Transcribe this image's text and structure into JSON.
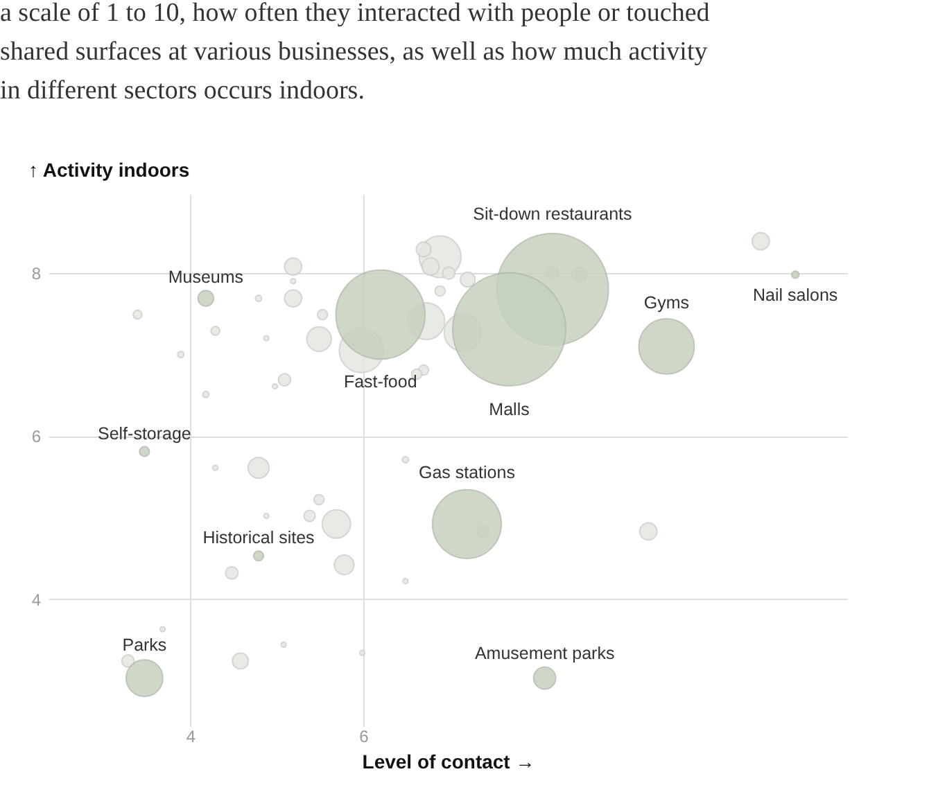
{
  "chart_data": {
    "type": "bubble",
    "subtitle": "a scale of 1 to 10, how often they interacted with people or touched shared surfaces at various businesses, as well as how much activity in different sectors occurs indoors.",
    "xlabel": "Level of contact →",
    "ylabel": "↑ Activity indoors",
    "xlim": [
      2.36,
      11.6
    ],
    "ylim": [
      2.44,
      8.97
    ],
    "xticks": [
      4,
      6
    ],
    "yticks": [
      4,
      6,
      8
    ],
    "grid": true,
    "series": [
      {
        "color": "#e4e7e1",
        "x": [
          5.19,
          5.19,
          5.19,
          4.79,
          3.39,
          4.29,
          4.88,
          3.89,
          5.09,
          4.98,
          4.18,
          5.53,
          5.49,
          5.98,
          6.7,
          6.89,
          6.7,
          6.78,
          6.99,
          7.21,
          6.89,
          6.73,
          7.15,
          8.5,
          8.19,
          6.62,
          10.6,
          3.68,
          3.28,
          4.29,
          4.79,
          5.49,
          5.38,
          4.88,
          5.69,
          5.78,
          4.48,
          6.49,
          6.49,
          5.08,
          4.58,
          5.99,
          7.39,
          9.3
        ],
        "values": [
          8.08,
          7.9,
          7.69,
          7.69,
          7.49,
          7.29,
          7.2,
          7.0,
          6.69,
          6.61,
          6.51,
          7.49,
          7.19,
          7.05,
          6.81,
          8.2,
          8.29,
          8.08,
          8.0,
          7.92,
          7.78,
          7.41,
          7.27,
          7.98,
          8.0,
          6.76,
          8.39,
          3.63,
          3.24,
          5.61,
          5.61,
          5.22,
          5.02,
          5.02,
          4.92,
          4.42,
          4.32,
          5.71,
          4.22,
          3.44,
          3.24,
          3.34,
          4.83,
          4.83
        ],
        "sizes": [
          0.023,
          0.002,
          0.023,
          0.003,
          0.006,
          0.006,
          0.002,
          0.003,
          0.012,
          0.002,
          0.003,
          0.008,
          0.047,
          0.153,
          0.008,
          0.137,
          0.017,
          0.023,
          0.012,
          0.017,
          0.008,
          0.106,
          0.106,
          0.017,
          0.012,
          0.008,
          0.023,
          0.002,
          0.012,
          0.002,
          0.034,
          0.008,
          0.01,
          0.002,
          0.063,
          0.03,
          0.012,
          0.003,
          0.002,
          0.002,
          0.02,
          0.002,
          0.01,
          0.023
        ]
      },
      {
        "color": "#c6d1bf",
        "x": [
          8.19,
          7.69,
          6.2,
          9.51,
          11.0,
          4.18,
          3.47,
          4.79,
          3.47,
          7.2,
          8.1
        ],
        "values": [
          7.8,
          7.31,
          7.49,
          7.1,
          7.98,
          7.69,
          5.81,
          4.53,
          3.03,
          4.92,
          3.03
        ],
        "sizes": [
          0.98,
          1,
          0.62,
          0.24,
          0.004,
          0.019,
          0.0075,
          0.0075,
          0.105,
          0.37,
          0.038
        ]
      }
    ],
    "annotations": [
      "Sit-down restaurants",
      "Malls",
      "Fast-food",
      "Gyms",
      "Nail salons",
      "Museums",
      "Self-storage",
      "Historical sites",
      "Parks",
      "Gas stations",
      "Amusement parks"
    ]
  }
}
